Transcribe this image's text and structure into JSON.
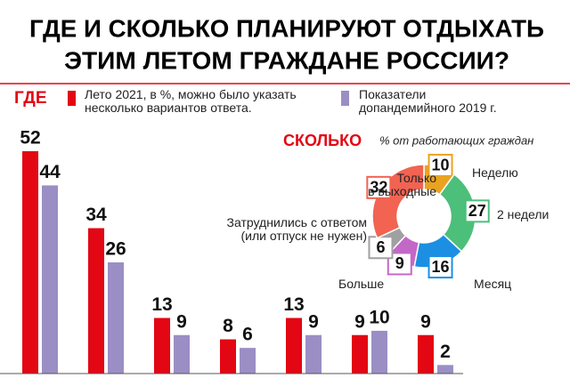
{
  "title_lines": [
    "ГДЕ И СКОЛЬКО ПЛАНИРУЮТ ОТДЫХАТЬ",
    "ЭТИМ ЛЕТОМ ГРАЖДАНЕ РОССИИ?"
  ],
  "chart_data": [
    {
      "type": "bar",
      "title": "ГДЕ",
      "categories": [
        null,
        null,
        null,
        null,
        null,
        null,
        null
      ],
      "series": [
        {
          "name": "Лето 2021, в %, можно было указать\nнесколько вариантов ответа.",
          "color": "#e30613",
          "values": [
            52,
            34,
            13,
            8,
            13,
            9,
            9
          ]
        },
        {
          "name": "Показатели\nдопандемийного 2019 г.",
          "color": "#9b8ec4",
          "values": [
            44,
            26,
            9,
            6,
            9,
            10,
            2
          ]
        }
      ]
    },
    {
      "type": "pie",
      "title": "СКОЛЬКО",
      "subtitle": "% от работающих граждан",
      "categories": [
        "Неделю",
        "2 недели",
        "Месяц",
        "Больше",
        "Затруднились с ответом\n(или отпуск не нужен)",
        "Только\nв выходные"
      ],
      "values": [
        10,
        27,
        16,
        9,
        6,
        32
      ],
      "colors": [
        "#e9a321",
        "#4cbf7a",
        "#1c8fe3",
        "#c468c8",
        "#a0a0a0",
        "#f26352"
      ]
    }
  ]
}
